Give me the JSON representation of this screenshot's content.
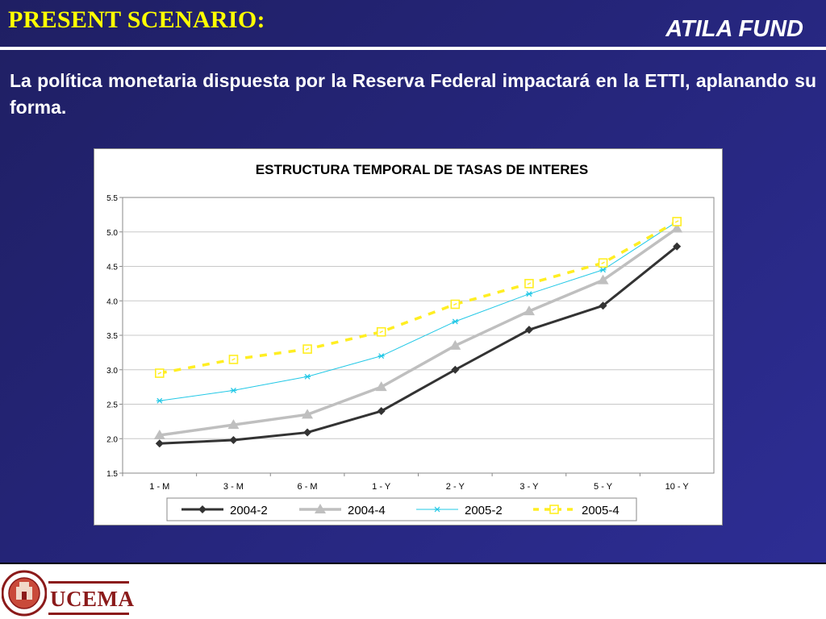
{
  "slide": {
    "title": "PRESENT SCENARIO:",
    "brand": "ATILA FUND",
    "lead": "La política monetaria dispuesta por la Reserva Federal impactará en la ETTI, aplanando su forma."
  },
  "chart_data": {
    "type": "line",
    "title": "ESTRUCTURA TEMPORAL DE TASAS DE INTERES",
    "categories": [
      "1 - M",
      "3 - M",
      "6 - M",
      "1 - Y",
      "2 - Y",
      "3 - Y",
      "5 - Y",
      "10 - Y"
    ],
    "ylim": [
      1.5,
      5.5
    ],
    "yticks": [
      "1.5",
      "2.0",
      "2.5",
      "3.0",
      "3.5",
      "4.0",
      "4.5",
      "5.0",
      "5.5"
    ],
    "grid": true,
    "legend": "bottom",
    "series": [
      {
        "name": "2004-2",
        "values": [
          1.93,
          1.98,
          2.09,
          2.4,
          3.0,
          3.58,
          3.93,
          4.79
        ],
        "color": "#333333",
        "marker": "diamond"
      },
      {
        "name": "2004-4",
        "values": [
          2.05,
          2.2,
          2.35,
          2.75,
          3.35,
          3.85,
          4.3,
          5.05
        ],
        "color": "#bfbfbf",
        "marker": "triangle"
      },
      {
        "name": "2005-2",
        "values": [
          2.55,
          2.7,
          2.9,
          3.2,
          3.7,
          4.1,
          4.45,
          5.15
        ],
        "color": "#22c8e6",
        "marker": "asterisk"
      },
      {
        "name": "2005-4",
        "values": [
          2.95,
          3.15,
          3.3,
          3.55,
          3.95,
          4.25,
          4.55,
          5.15
        ],
        "color": "#ffee22",
        "marker": "square"
      }
    ]
  },
  "footer": {
    "logo_text": "UCEMA",
    "seal_text": "UNIVERSIDAD DEL CEMA"
  }
}
